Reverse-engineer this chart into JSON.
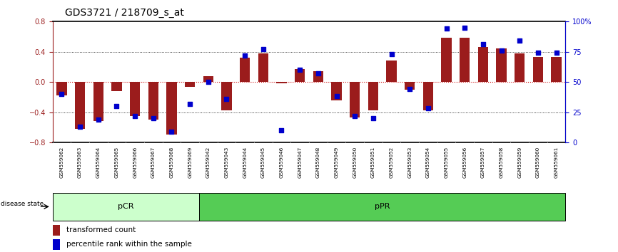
{
  "title": "GDS3721 / 218709_s_at",
  "samples": [
    "GSM559062",
    "GSM559063",
    "GSM559064",
    "GSM559065",
    "GSM559066",
    "GSM559067",
    "GSM559068",
    "GSM559069",
    "GSM559042",
    "GSM559043",
    "GSM559044",
    "GSM559045",
    "GSM559046",
    "GSM559047",
    "GSM559048",
    "GSM559049",
    "GSM559050",
    "GSM559051",
    "GSM559052",
    "GSM559053",
    "GSM559054",
    "GSM559055",
    "GSM559056",
    "GSM559057",
    "GSM559058",
    "GSM559059",
    "GSM559060",
    "GSM559061"
  ],
  "bar_values": [
    -0.18,
    -0.62,
    -0.52,
    -0.12,
    -0.45,
    -0.5,
    -0.7,
    -0.07,
    0.08,
    -0.38,
    0.32,
    0.38,
    -0.02,
    0.17,
    0.14,
    -0.24,
    -0.47,
    -0.38,
    0.28,
    -0.1,
    -0.38,
    0.58,
    0.58,
    0.46,
    0.44,
    0.38,
    0.33,
    0.33
  ],
  "dot_values": [
    40,
    13,
    19,
    30,
    22,
    20,
    9,
    32,
    50,
    36,
    72,
    77,
    10,
    60,
    57,
    38,
    22,
    20,
    73,
    44,
    28,
    94,
    95,
    81,
    76,
    84,
    74,
    74
  ],
  "pCR_count": 8,
  "pPR_count": 20,
  "ylim_left": [
    -0.8,
    0.8
  ],
  "ylim_right": [
    0,
    100
  ],
  "yticks_left": [
    -0.8,
    -0.4,
    0.0,
    0.4,
    0.8
  ],
  "yticks_right": [
    0,
    25,
    50,
    75,
    100
  ],
  "bar_color": "#9b1c1c",
  "dot_color": "#0000cc",
  "bar_width": 0.55,
  "hline_color": "#cc0000",
  "pCR_color": "#ccffcc",
  "pPR_color": "#55cc55",
  "xlabel_bg": "#cccccc",
  "disease_state_label": "disease state",
  "legend_bar_label": "transformed count",
  "legend_dot_label": "percentile rank within the sample",
  "title_fontsize": 10,
  "tick_fontsize": 7,
  "axis_label_fontsize": 7
}
